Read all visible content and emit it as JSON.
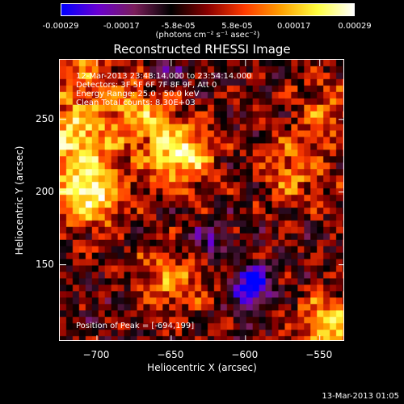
{
  "colorbar": {
    "colors": [
      "#0000ff",
      "#6a00d0",
      "#7a1e5a",
      "#000000",
      "#8a0000",
      "#ff3a00",
      "#ffa000",
      "#ffff40",
      "#ffffff"
    ],
    "ticks": [
      "-0.00029",
      "-0.00017",
      "-5.8e-05",
      "5.8e-05",
      "0.00017",
      "0.00029"
    ],
    "tick_values": [
      -0.00029,
      -0.00017,
      -5.8e-05,
      5.8e-05,
      0.00017,
      0.00029
    ],
    "range": [
      -0.00029,
      0.00029
    ],
    "units": "(photons cm⁻² s⁻¹ asec⁻²)"
  },
  "annotations": {
    "line1": "12-Mar-2013 23:48:14.000 to 23:54:14.000",
    "line2": "Detectors: 3F 5F 6F 7F 8F 9F, Att 0",
    "line3": "Energy Range: 25.0 - 50.0 keV",
    "line4": "Clean    Total counts: 8.30E+03",
    "peak": "Position of Peak = [-694,199]"
  },
  "chart_data": {
    "type": "heatmap",
    "title": "Reconstructed RHESSI Image",
    "xlabel": "Heliocentric X (arcsec)",
    "ylabel": "Heliocentric Y (arcsec)",
    "xlim": [
      -725,
      -533
    ],
    "ylim": [
      97,
      291
    ],
    "x_ticks": [
      -700,
      -650,
      -600,
      -550
    ],
    "x_tick_labels": [
      "−700",
      "−650",
      "−600",
      "−550"
    ],
    "y_ticks": [
      150,
      200,
      250
    ],
    "y_tick_labels": [
      "150",
      "200",
      "250"
    ],
    "peak_position": [
      -694,
      199
    ],
    "value_range": [
      -0.00029,
      0.00029
    ],
    "sources": [
      {
        "x": -705,
        "y": 200,
        "value": 0.00029
      },
      {
        "x": -715,
        "y": 240,
        "value": 0.00024
      },
      {
        "x": -645,
        "y": 225,
        "value": 0.00026
      },
      {
        "x": -672,
        "y": 255,
        "value": 0.00018
      },
      {
        "x": -570,
        "y": 215,
        "value": 0.00015
      },
      {
        "x": -548,
        "y": 255,
        "value": 0.00013
      },
      {
        "x": -545,
        "y": 108,
        "value": 0.00022
      },
      {
        "x": -650,
        "y": 140,
        "value": 0.00016
      },
      {
        "x": -710,
        "y": 285,
        "value": 0.00012
      }
    ],
    "minima": [
      {
        "x": -598,
        "y": 135,
        "value": -0.00029
      },
      {
        "x": -625,
        "y": 165,
        "value": -0.00012
      },
      {
        "x": -655,
        "y": 280,
        "value": -0.0001
      }
    ]
  },
  "footer": "13-Mar-2013 01:05"
}
